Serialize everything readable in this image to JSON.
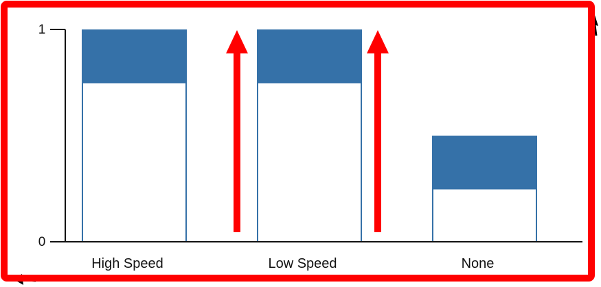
{
  "chart_data": {
    "type": "bar",
    "categories": [
      "High Speed",
      "Low Speed",
      "None"
    ],
    "ylim": [
      0,
      1
    ],
    "yticks": [
      {
        "value": 0,
        "label": "0"
      },
      {
        "value": 1,
        "label": "1"
      }
    ],
    "series": [
      {
        "values": [
          0.75,
          0.75,
          0.25
        ],
        "style": "outlined-empty"
      },
      {
        "values": [
          0.25,
          0.25,
          0.25
        ],
        "style": "filled"
      }
    ],
    "xlabel": "",
    "ylabel": "",
    "title": "",
    "grid": false,
    "colors": {
      "bar_fill": "#3571a8",
      "bar_outline": "#3571a8",
      "axis": "#111111",
      "annotation": "#ff0000",
      "corner_arrow": "#000000"
    },
    "annotations": {
      "up_arrows_between_bars": 2,
      "border_frame": "red"
    }
  }
}
